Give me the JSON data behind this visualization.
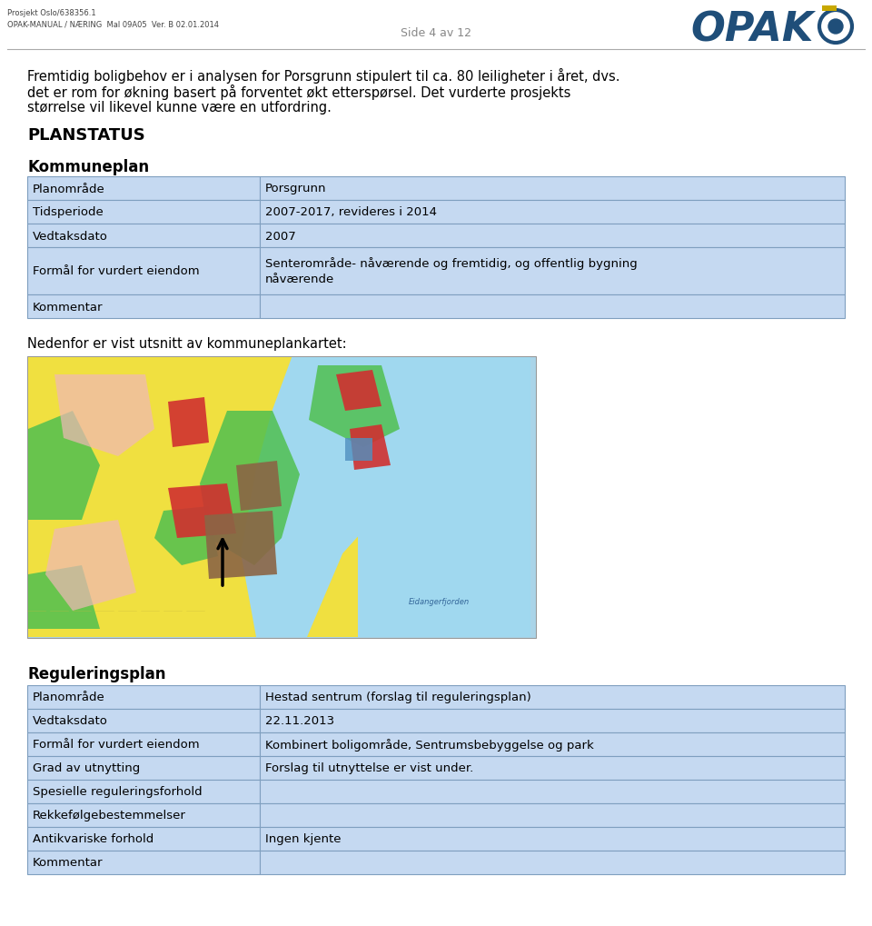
{
  "header_line1": "Prosjekt Oslo/638356.1",
  "header_line2": "OPAK-MANUAL / NÆRING  Mal 09A05  Ver. B 02.01.2014",
  "page_info": "Side 4 av 12",
  "intro_text_lines": [
    "Fremtidig boligbehov er i analysen for Porsgrunn stipulert til ca. 80 leiligheter i året, dvs.",
    "det er rom for økning basert på forventet økt etterspørsel. Det vurderte prosjekts",
    "størrelse vil likevel kunne være en utfordring."
  ],
  "planstatus_title": "PLANSTATUS",
  "kommuneplan_title": "Kommuneplan",
  "kommuneplan_rows": [
    [
      "Planområde",
      "Porsgrunn"
    ],
    [
      "Tidsperiode",
      "2007-2017, revideres i 2014"
    ],
    [
      "Vedtaksdato",
      "2007"
    ],
    [
      "Formål for vurdert eiendom",
      "Senterområde- nåværende og fremtidig, og offentlig bygning\nnåværende"
    ],
    [
      "Kommentar",
      ""
    ]
  ],
  "map_caption": "Nedenfor er vist utsnitt av kommuneplankartet:",
  "reguleringsplan_title": "Reguleringsplan",
  "reguleringsplan_rows": [
    [
      "Planområde",
      "Hestad sentrum (forslag til reguleringsplan)"
    ],
    [
      "Vedtaksdato",
      "22.11.2013"
    ],
    [
      "Formål for vurdert eiendom",
      "Kombinert boligområde, Sentrumsbebyggelse og park"
    ],
    [
      "Grad av utnytting",
      "Forslag til utnyttelse er vist under."
    ],
    [
      "Spesielle reguleringsforhold",
      ""
    ],
    [
      "Rekkefølgebestemmelser",
      ""
    ],
    [
      "Antikvariske forhold",
      "Ingen kjente"
    ],
    [
      "Kommentar",
      ""
    ]
  ],
  "table_row_bg": "#c5d9f1",
  "table_border": "#7f9fbf",
  "text_color": "#000000",
  "bg_color": "#ffffff",
  "header_text_color": "#444444",
  "opak_blue": "#1f4e79",
  "opak_gold": "#c8a800"
}
